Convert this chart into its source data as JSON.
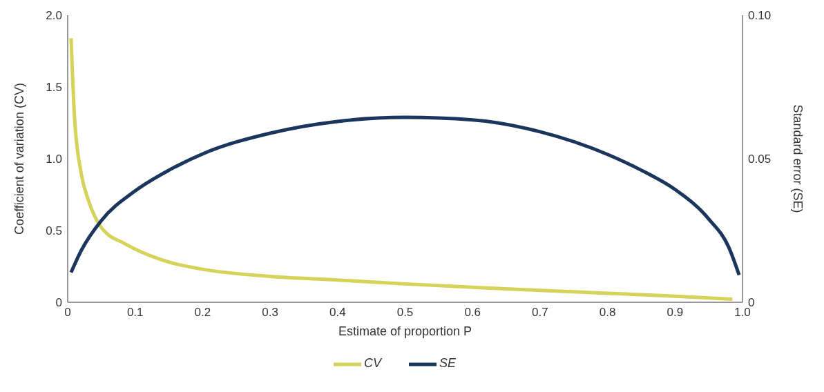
{
  "chart_data": {
    "type": "line",
    "xlabel": "Estimate of proportion P",
    "ylabel": "Coefficient of variation (CV)",
    "y2label": "Standard error (SE)",
    "xlim": [
      0,
      1
    ],
    "xticks": [
      0,
      {
        "value": 0.1,
        "label": "0.1"
      },
      {
        "value": 0.2,
        "label": "0.2"
      },
      {
        "value": 0.3,
        "label": "0.3"
      },
      {
        "value": 0.4,
        "label": "0.4"
      },
      {
        "value": 0.5,
        "label": "0.5"
      },
      {
        "value": 0.6,
        "label": "0.6"
      },
      {
        "value": 0.7,
        "label": "0.7"
      },
      {
        "value": 0.8,
        "label": "0.8"
      },
      {
        "value": 0.9,
        "label": "0.9"
      },
      {
        "value": 1,
        "label": "1.0"
      }
    ],
    "ylim": [
      0,
      2
    ],
    "yticks": [
      0,
      0.5,
      {
        "value": 1,
        "label": "1.0"
      },
      1.5,
      {
        "value": 2,
        "label": "2.0"
      }
    ],
    "y2lim": [
      0,
      0.1
    ],
    "y2ticks": [
      0,
      0.05,
      {
        "value": 0.1,
        "label": "0.10"
      }
    ],
    "legend": "bottom",
    "marker": "none",
    "line_style": "solid",
    "series": [
      {
        "name": "CV",
        "color": "#d5d35a",
        "x": [
          0.005,
          0.01,
          0.02,
          0.03,
          0.04,
          0.05,
          0.06,
          0.08,
          0.1,
          0.15,
          0.2,
          0.3,
          0.4,
          0.5,
          0.6,
          0.7,
          0.8,
          0.9,
          0.985
        ],
        "values": [
          1.84,
          1.3,
          0.9,
          0.72,
          0.6,
          0.52,
          0.47,
          0.42,
          0.37,
          0.28,
          0.23,
          0.18,
          0.155,
          0.128,
          0.105,
          0.083,
          0.063,
          0.042,
          0.022
        ]
      },
      {
        "name": "SE",
        "color": "#1b365d",
        "axis": "y2",
        "x": [
          0.005,
          0.02,
          0.05,
          0.1,
          0.15,
          0.2,
          0.3,
          0.4,
          0.5,
          0.6,
          0.7,
          0.8,
          0.85,
          0.9,
          0.95,
          0.98,
          0.995
        ],
        "values": [
          0.0104,
          0.018,
          0.0285,
          0.0388,
          0.046,
          0.0517,
          0.0589,
          0.063,
          0.0644,
          0.0635,
          0.0594,
          0.0515,
          0.046,
          0.0393,
          0.029,
          0.019,
          0.0095
        ]
      }
    ]
  }
}
